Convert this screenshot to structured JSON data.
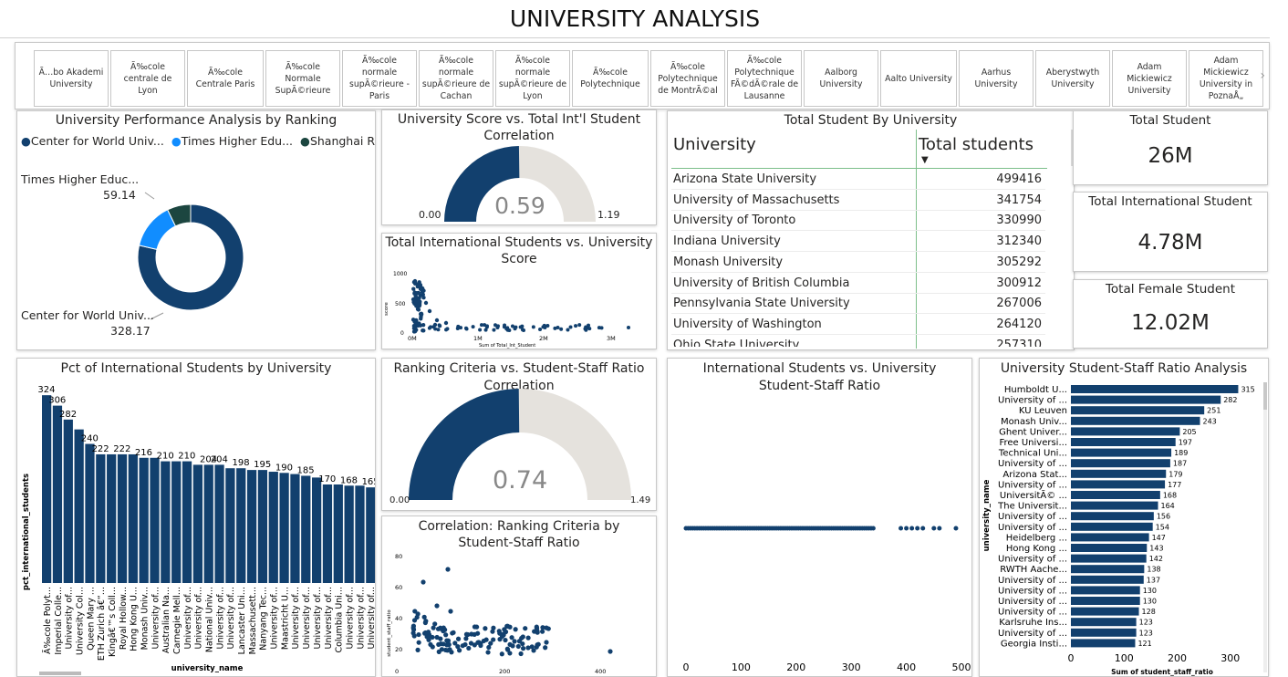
{
  "title": "UNIVERSITY ANALYSIS",
  "slicer": {
    "items": [
      "Ã…bo Akademi University",
      "Ã‰cole centrale de Lyon",
      "Ã‰cole Centrale Paris",
      "Ã‰cole Normale SupÃ©rieure",
      "Ã‰cole normale supÃ©rieure - Paris",
      "Ã‰cole normale supÃ©rieure de Cachan",
      "Ã‰cole normale supÃ©rieure de Lyon",
      "Ã‰cole Polytechnique",
      "Ã‰cole Polytechnique de MontrÃ©al",
      "Ã‰cole Polytechnique FÃ©dÃ©rale de Lausanne",
      "Aalborg University",
      "Aalto University",
      "Aarhus University",
      "Aberystwyth University",
      "Adam Mickiewicz University",
      "Adam Mickiewicz University in PoznaÅ„"
    ],
    "next_icon": "chevron-right-icon"
  },
  "colors": {
    "navy": "#12406e",
    "blue": "#118dff",
    "dark": "#1c4640",
    "grey": "#e5e2dd"
  },
  "donut": {
    "title": "University Performance Analysis by Ranking",
    "legend": [
      "Center for World Univ...",
      "Times Higher Edu...",
      "Shanghai R..."
    ],
    "label_times": "Times Higher Educ...",
    "value_times": "59.14",
    "label_center": "Center for World Univ...",
    "value_center": "328.17"
  },
  "gauge1": {
    "title_l1": "University Score vs. Total Int'l Student",
    "title_l2": "Correlation",
    "value": "0.59",
    "min": "0.00",
    "max": "1.19"
  },
  "gauge2": {
    "title_l1": "Ranking Criteria vs. Student-Staff Ratio",
    "title_l2": "Correlation",
    "value": "0.74",
    "min": "0.00",
    "max": "1.49"
  },
  "scatter1": {
    "title_l1": "Total International Students vs. University",
    "title_l2": "Score",
    "xlabel": "Sum of Total_Int_Student",
    "ylabel": "score",
    "yticks": [
      "1000",
      "500",
      "0"
    ],
    "xticks": [
      "0M",
      "1M",
      "2M",
      "3M"
    ]
  },
  "scatter2": {
    "title_l1": "Correlation: Ranking Criteria by",
    "title_l2": "Student-Staff Ratio",
    "ylabel": "student_staff_ratio",
    "yticks": [
      "80",
      "60",
      "40",
      "20",
      "0"
    ],
    "xticks": [
      "200",
      "400"
    ]
  },
  "table": {
    "title": "Total Student By University",
    "col1": "University",
    "col2": "Total students",
    "rows": [
      {
        "u": "Arizona State University",
        "n": "499416"
      },
      {
        "u": "University of Massachusetts",
        "n": "341754"
      },
      {
        "u": "University of Toronto",
        "n": "330990"
      },
      {
        "u": "Indiana University",
        "n": "312340"
      },
      {
        "u": "Monash University",
        "n": "305292"
      },
      {
        "u": "University of British Columbia",
        "n": "300912"
      },
      {
        "u": "Pennsylvania State University",
        "n": "267006"
      },
      {
        "u": "University of Washington",
        "n": "264120"
      },
      {
        "u": "Ohio State University",
        "n": "257310"
      }
    ]
  },
  "kpis": [
    {
      "title": "Total Student",
      "value": "26M"
    },
    {
      "title": "Total International Student",
      "value": "4.78M"
    },
    {
      "title": "Total Female Student",
      "value": "12.02M"
    }
  ],
  "pct_chart": {
    "title": "Pct of International Students by University",
    "ylabel": "pct_international_students",
    "xlabel": "university_name"
  },
  "ratio_scatter": {
    "title_l1": "International Students vs. University",
    "title_l2": "Student-Staff Ratio",
    "xticks": [
      "0",
      "100",
      "200",
      "300",
      "400",
      "500"
    ]
  },
  "ratio_bars": {
    "title": "University Student-Staff Ratio Analysis",
    "ylabel": "university_name",
    "xlabel": "Sum of student_staff_ratio",
    "xticks": [
      "0",
      "100",
      "200",
      "300"
    ]
  },
  "chart_data": [
    {
      "type": "pie",
      "title": "University Performance Analysis by Ranking",
      "categories": [
        "Center for World Univ...",
        "Times Higher Edu...",
        "Shanghai R..."
      ],
      "values": [
        328.17,
        59.14,
        30
      ]
    },
    {
      "type": "bar",
      "title": "Pct of International Students by University",
      "xlabel": "university_name",
      "ylabel": "pct_international_students",
      "categories": [
        "Ã‰cole Polyt...",
        "Imperial Colle...",
        "University of...",
        "University Col...",
        "Queen Mary ...",
        "ETH Zurich â€“...",
        "Kingâ€™s Coll...",
        "Royal Hollow...",
        "Hong Kong U...",
        "Monash Univ...",
        "University of...",
        "Australian Na...",
        "Carnegie Mell...",
        "University of...",
        "University of...",
        "National Univ...",
        "University of...",
        "University of...",
        "Lancaster Uni...",
        "Massachusett...",
        "Nanyang Tec...",
        "University of...",
        "Maastricht U...",
        "University of...",
        "University of...",
        "University of...",
        "University of...",
        "Columbia Uni...",
        "University of...",
        "University of...",
        "University of..."
      ],
      "values": [
        324,
        306,
        282,
        265,
        240,
        222,
        222,
        222,
        222,
        216,
        216,
        210,
        210,
        210,
        204,
        204,
        204,
        198,
        198,
        195,
        195,
        192,
        190,
        188,
        185,
        182,
        170,
        170,
        168,
        168,
        165
      ],
      "labels": {
        "0": "324",
        "1": "306",
        "2": "282",
        "4": "240",
        "5": "222",
        "7": "222",
        "9": "216",
        "11": "210",
        "13": "210",
        "15": "204",
        "16": "204",
        "18": "198",
        "20": "195",
        "22": "190",
        "24": "185",
        "26": "170",
        "28": "168",
        "30": "165"
      },
      "ylim": [
        0,
        340
      ]
    },
    {
      "type": "bar",
      "title": "University Student-Staff Ratio Analysis",
      "xlabel": "Sum of student_staff_ratio",
      "ylabel": "university_name",
      "categories": [
        "Humboldt U...",
        "University of ...",
        "KU Leuven",
        "Monash Univ...",
        "Ghent Univer...",
        "Free Universi...",
        "Technical Uni...",
        "University of ...",
        "Arizona Stat...",
        "University of ...",
        "UniversitÃ© ...",
        "The Universit...",
        "University of ...",
        "University of ...",
        "Heidelberg ...",
        "Hong Kong ...",
        "University of ...",
        "RWTH Aache...",
        "University of ...",
        "University of ...",
        "University of ...",
        "University of ...",
        "Karlsruhe Ins...",
        "University of ...",
        "Georgia Insti..."
      ],
      "values": [
        315,
        282,
        251,
        243,
        205,
        197,
        189,
        187,
        179,
        177,
        168,
        164,
        156,
        154,
        147,
        143,
        142,
        138,
        137,
        130,
        130,
        128,
        123,
        123,
        121
      ],
      "xlim": [
        0,
        340
      ]
    },
    {
      "type": "scatter",
      "title": "International Students vs. University Student-Staff Ratio",
      "x": [
        0,
        10,
        20,
        30,
        40,
        50,
        60,
        70,
        80,
        90,
        100,
        110,
        120,
        130,
        140,
        150,
        160,
        170,
        180,
        190,
        200,
        210,
        220,
        230,
        240,
        250,
        260,
        270,
        280,
        290,
        300,
        310,
        320,
        330,
        340,
        390,
        400,
        410,
        420,
        430,
        450,
        460,
        490
      ],
      "xlim": [
        0,
        500
      ]
    }
  ]
}
